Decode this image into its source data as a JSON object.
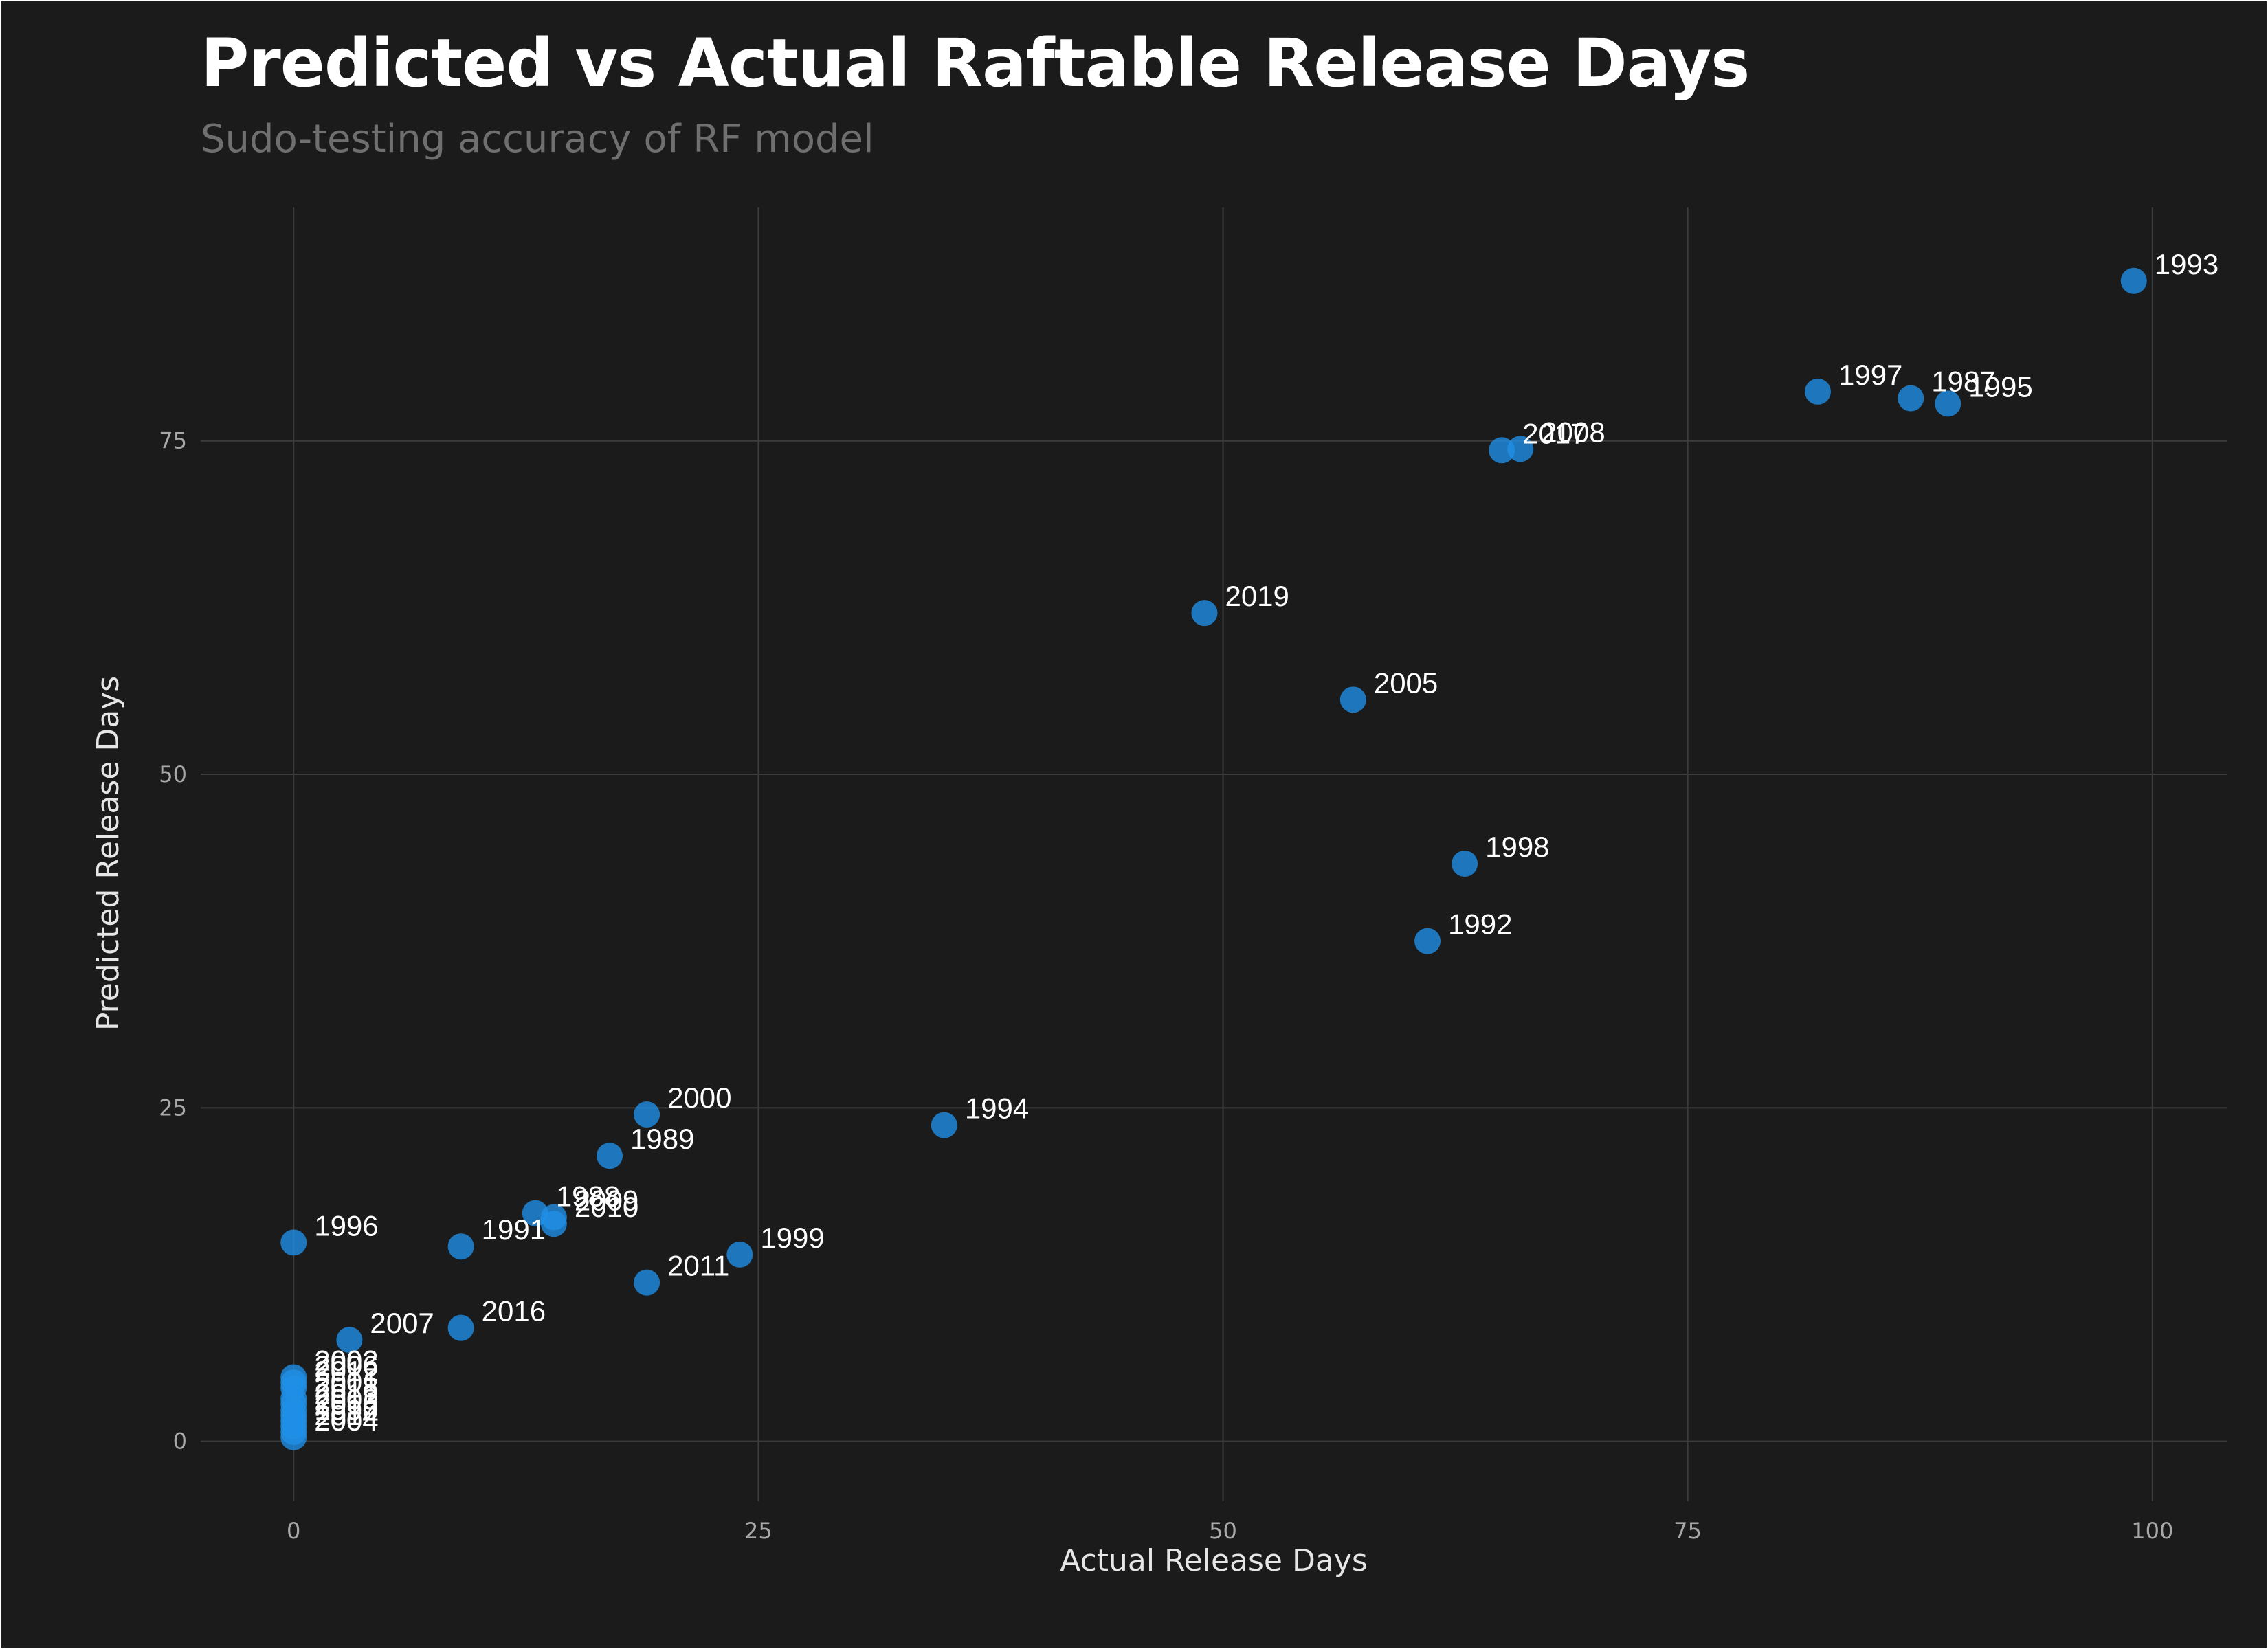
{
  "chart_data": {
    "type": "scatter",
    "title": "Predicted vs Actual Raftable Release Days",
    "subtitle": "Sudo-testing accuracy of RF model",
    "xlabel": "Actual Release Days",
    "ylabel": "Predicted Release Days",
    "xlim": [
      -5,
      104
    ],
    "ylim": [
      -4.5,
      92.5
    ],
    "xticks": [
      0,
      25,
      50,
      75,
      100
    ],
    "yticks": [
      0,
      25,
      50,
      75
    ],
    "grid": true,
    "point_color": "#1f8ee6",
    "background_color": "#1b1b1b",
    "points": [
      {
        "label": "1993",
        "x": 99,
        "y": 87.0
      },
      {
        "label": "1997",
        "x": 82,
        "y": 78.7
      },
      {
        "label": "1987",
        "x": 87,
        "y": 78.2
      },
      {
        "label": "1995",
        "x": 89,
        "y": 77.8
      },
      {
        "label": "2017",
        "x": 65,
        "y": 74.3
      },
      {
        "label": "2008",
        "x": 66,
        "y": 74.4
      },
      {
        "label": "2019",
        "x": 49,
        "y": 62.1
      },
      {
        "label": "2005",
        "x": 57,
        "y": 55.6
      },
      {
        "label": "1998",
        "x": 63,
        "y": 43.3
      },
      {
        "label": "1992",
        "x": 61,
        "y": 37.5
      },
      {
        "label": "2000",
        "x": 19,
        "y": 24.5
      },
      {
        "label": "1994",
        "x": 35,
        "y": 23.7
      },
      {
        "label": "1989",
        "x": 17,
        "y": 21.4
      },
      {
        "label": "1988",
        "x": 13,
        "y": 17.1
      },
      {
        "label": "2009",
        "x": 14,
        "y": 16.8
      },
      {
        "label": "2010",
        "x": 14,
        "y": 16.3
      },
      {
        "label": "1996",
        "x": 0,
        "y": 14.9
      },
      {
        "label": "1991",
        "x": 9,
        "y": 14.6
      },
      {
        "label": "1999",
        "x": 24,
        "y": 14.0
      },
      {
        "label": "2011",
        "x": 19,
        "y": 11.9
      },
      {
        "label": "2016",
        "x": 9,
        "y": 8.5
      },
      {
        "label": "2007",
        "x": 3,
        "y": 7.6
      },
      {
        "label": "2002",
        "x": 0,
        "y": 4.8
      },
      {
        "label": "2006",
        "x": 0,
        "y": 4.4
      },
      {
        "label": "2012",
        "x": 0,
        "y": 4.0
      },
      {
        "label": "2001",
        "x": 0,
        "y": 3.2
      },
      {
        "label": "2018",
        "x": 0,
        "y": 2.8
      },
      {
        "label": "2013",
        "x": 0,
        "y": 2.3
      },
      {
        "label": "2003",
        "x": 0,
        "y": 1.9
      },
      {
        "label": "2015",
        "x": 0,
        "y": 1.5
      },
      {
        "label": "1990",
        "x": 0,
        "y": 1.1
      },
      {
        "label": "2014",
        "x": 0,
        "y": 0.7
      },
      {
        "label": "2004",
        "x": 0,
        "y": 0.3
      }
    ]
  }
}
